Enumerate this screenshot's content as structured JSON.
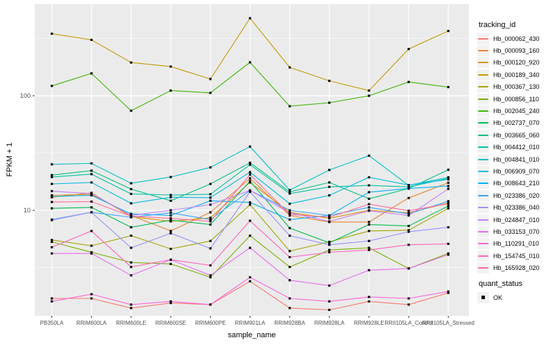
{
  "chart_data": {
    "type": "line",
    "title": "",
    "xlabel": "sample_name",
    "ylabel": "FPKM + 1",
    "y_scale": "log10",
    "ylim": [
      1.2,
      630
    ],
    "grid": true,
    "panel_bg": "#EBEBEB",
    "grid_color": "#FFFFFF",
    "tick_label_color": "#4D4D4D",
    "y_major_ticks": [
      {
        "label": "10",
        "value": 10
      },
      {
        "label": "100",
        "value": 100
      }
    ],
    "y_minor_ticks": [
      3.162,
      31.62,
      316.2
    ],
    "categories": [
      "PB350LA",
      "RRIM600LA",
      "RRIM600LE",
      "RRIM600SE",
      "RRIM600PE",
      "RRIM901LA",
      "RRIM928BA",
      "RRIM928LA",
      "RRIM928LE",
      "RRII105LA_Control",
      "RRII105LA_Stressed"
    ],
    "series": [
      {
        "name": "Hb_000062_430",
        "color": "#F8766D",
        "values": [
          1.7,
          1.7,
          1.4,
          1.55,
          1.5,
          2.4,
          1.4,
          1.35,
          1.6,
          1.5,
          1.9
        ]
      },
      {
        "name": "Hb_000093_160",
        "color": "#EA8331",
        "values": [
          13.5,
          13.8,
          9.0,
          6.6,
          9.6,
          19.0,
          9.0,
          7.9,
          7.9,
          12.8,
          17.4
        ]
      },
      {
        "name": "Hb_000120_920",
        "color": "#D89000",
        "values": [
          13.0,
          14.2,
          8.8,
          8.0,
          8.6,
          17.5,
          9.6,
          8.5,
          10.0,
          9.5,
          11.6
        ]
      },
      {
        "name": "Hb_000189_340",
        "color": "#C09B00",
        "values": [
          348,
          308,
          195,
          180,
          140,
          475,
          177,
          135,
          111,
          256,
          368
        ]
      },
      {
        "name": "Hb_000367_130",
        "color": "#A3A500",
        "values": [
          5.5,
          4.9,
          6.0,
          4.6,
          5.4,
          11.2,
          4.4,
          5.3,
          6.6,
          6.7,
          10.4
        ]
      },
      {
        "name": "Hb_000856_110",
        "color": "#7CAE00",
        "values": [
          5.3,
          4.3,
          3.5,
          3.4,
          2.6,
          6.0,
          3.2,
          4.5,
          4.7,
          3.1,
          4.2
        ]
      },
      {
        "name": "Hb_002045_240",
        "color": "#39B600",
        "values": [
          122,
          157,
          74,
          111,
          106,
          196,
          81,
          87,
          100,
          132,
          119
        ]
      },
      {
        "name": "Hb_002737_070",
        "color": "#00BB4E",
        "values": [
          10.4,
          10.6,
          7.1,
          8.2,
          7.5,
          18.0,
          7.0,
          5.2,
          7.5,
          7.3,
          10.9
        ]
      },
      {
        "name": "Hb_003665_060",
        "color": "#00BF7D",
        "values": [
          20.3,
          22.2,
          15.3,
          12.1,
          17.0,
          26.0,
          14.5,
          17.5,
          12.6,
          15.5,
          22.6
        ]
      },
      {
        "name": "Hb_004412_010",
        "color": "#00C1A3",
        "values": [
          19.5,
          20.7,
          13.9,
          13.6,
          13.8,
          25.0,
          14.0,
          16.0,
          16.5,
          16.0,
          19.0
        ]
      },
      {
        "name": "Hb_004841_010",
        "color": "#00BFC4",
        "values": [
          25.2,
          25.7,
          17.2,
          19.5,
          23.7,
          36.0,
          15.0,
          22.5,
          30.0,
          16.5,
          19.4
        ]
      },
      {
        "name": "Hb_006909_070",
        "color": "#00BAE0",
        "values": [
          17.0,
          17.5,
          11.5,
          13.0,
          12.9,
          21.5,
          11.4,
          13.5,
          19.4,
          16.6,
          18.6
        ]
      },
      {
        "name": "Hb_008643_210",
        "color": "#00B0F6",
        "values": [
          13.2,
          13.5,
          9.3,
          9.0,
          12.1,
          11.7,
          8.3,
          9.0,
          14.4,
          15.5,
          16.3
        ]
      },
      {
        "name": "Hb_023386_020",
        "color": "#35A2FF",
        "values": [
          8.3,
          9.6,
          8.7,
          9.5,
          8.3,
          14.9,
          10.0,
          9.0,
          10.6,
          9.3,
          12.0
        ]
      },
      {
        "name": "Hb_023386_040",
        "color": "#9590FF",
        "values": [
          8.2,
          9.6,
          4.7,
          6.3,
          4.65,
          14.5,
          6.0,
          5.0,
          5.4,
          6.5,
          7.1
        ]
      },
      {
        "name": "Hb_024847_010",
        "color": "#C77CFF",
        "values": [
          14.7,
          14.0,
          9.0,
          10.0,
          11.2,
          14.9,
          9.5,
          8.0,
          9.9,
          9.0,
          15.4
        ]
      },
      {
        "name": "Hb_033153_070",
        "color": "#E76BF3",
        "values": [
          4.2,
          4.2,
          2.7,
          3.7,
          2.7,
          4.7,
          2.45,
          2.2,
          3.0,
          3.1,
          4.1
        ]
      },
      {
        "name": "Hb_110291_010",
        "color": "#FA62DB",
        "values": [
          1.6,
          1.85,
          1.5,
          1.6,
          1.5,
          2.6,
          1.7,
          1.6,
          1.75,
          1.7,
          1.95
        ]
      },
      {
        "name": "Hb_154745_010",
        "color": "#FF62BC",
        "values": [
          4.75,
          6.6,
          3.2,
          3.7,
          3.3,
          8.1,
          3.9,
          4.3,
          4.5,
          5.0,
          5.1
        ]
      },
      {
        "name": "Hb_165928_020",
        "color": "#FF6A98",
        "values": [
          11.8,
          11.9,
          8.9,
          8.5,
          8.0,
          20.5,
          9.2,
          8.7,
          11.3,
          9.9,
          11.4
        ]
      }
    ],
    "legend": {
      "position": "right",
      "color_title": "tracking_id",
      "shape_title": "quant_status",
      "shape_items": [
        {
          "label": "OK",
          "marker": "black-square"
        }
      ]
    }
  }
}
